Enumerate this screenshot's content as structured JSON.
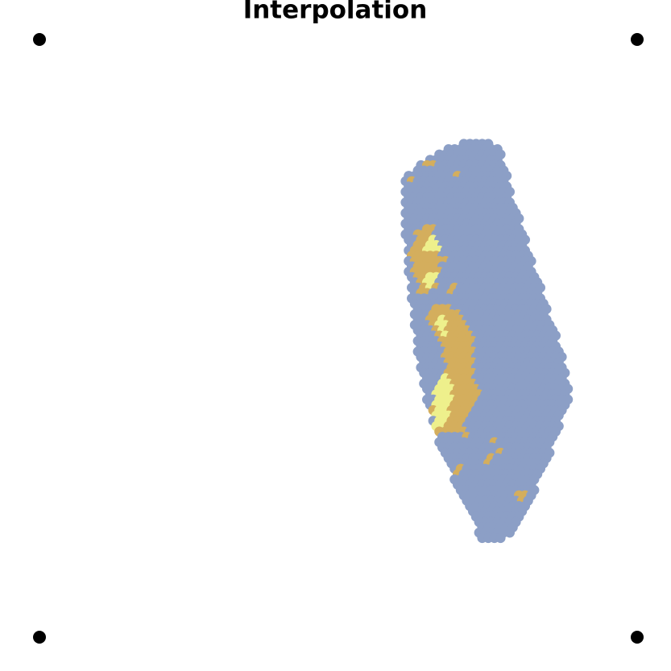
{
  "title": "Interpolation"
}
